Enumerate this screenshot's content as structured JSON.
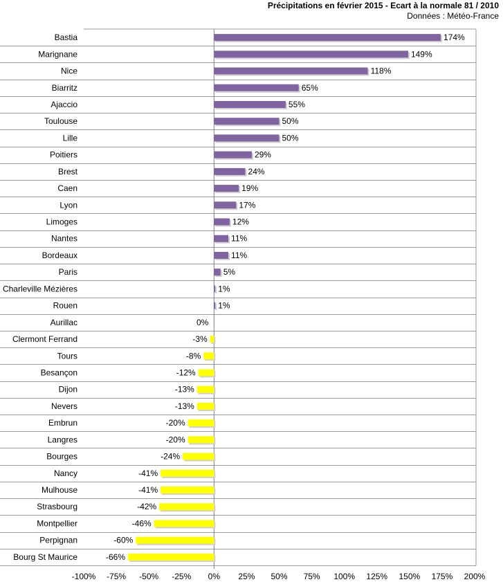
{
  "chart_data": {
    "type": "bar",
    "orientation": "horizontal",
    "title": "Précipitations en février 2015 - Ecart à la normale 81 / 2010",
    "subtitle": "Données : Météo-France",
    "categories": [
      "Bastia",
      "Marignane",
      "Nice",
      "Biarritz",
      "Ajaccio",
      "Toulouse",
      "Lille",
      "Poitiers",
      "Brest",
      "Caen",
      "Lyon",
      "Limoges",
      "Nantes",
      "Bordeaux",
      "Paris",
      "Charleville Mézières",
      "Rouen",
      "Aurillac",
      "Clermont Ferrand",
      "Tours",
      "Besançon",
      "Dijon",
      "Nevers",
      "Embrun",
      "Langres",
      "Bourges",
      "Nancy",
      "Mulhouse",
      "Strasbourg",
      "Montpellier",
      "Perpignan",
      "Bourg St Maurice"
    ],
    "values": [
      174,
      149,
      118,
      65,
      55,
      50,
      50,
      29,
      24,
      19,
      17,
      12,
      11,
      11,
      5,
      1,
      1,
      0,
      -3,
      -8,
      -12,
      -13,
      -13,
      -20,
      -20,
      -24,
      -41,
      -41,
      -42,
      -46,
      -60,
      -66
    ],
    "value_labels": [
      "174%",
      "149%",
      "118%",
      "65%",
      "55%",
      "50%",
      "50%",
      "29%",
      "24%",
      "19%",
      "17%",
      "12%",
      "11%",
      "11%",
      "5%",
      "1%",
      "1%",
      "0%",
      "-3%",
      "-8%",
      "-12%",
      "-13%",
      "-13%",
      "-20%",
      "-20%",
      "-24%",
      "-41%",
      "-41%",
      "-42%",
      "-46%",
      "-60%",
      "-66%"
    ],
    "xlim": [
      -100,
      200
    ],
    "xticks": [
      -100,
      -75,
      -50,
      -25,
      0,
      25,
      50,
      75,
      100,
      125,
      150,
      175,
      200
    ],
    "xtick_labels": [
      "-100%",
      "-75%",
      "-50%",
      "-25%",
      "0%",
      "25%",
      "50%",
      "75%",
      "100%",
      "125%",
      "150%",
      "175%",
      "200%"
    ],
    "grid": true,
    "colors": {
      "positive": "#8064a2",
      "negative": "#ffff00",
      "grid": "#9a9a9a",
      "axis": "#808080"
    }
  }
}
